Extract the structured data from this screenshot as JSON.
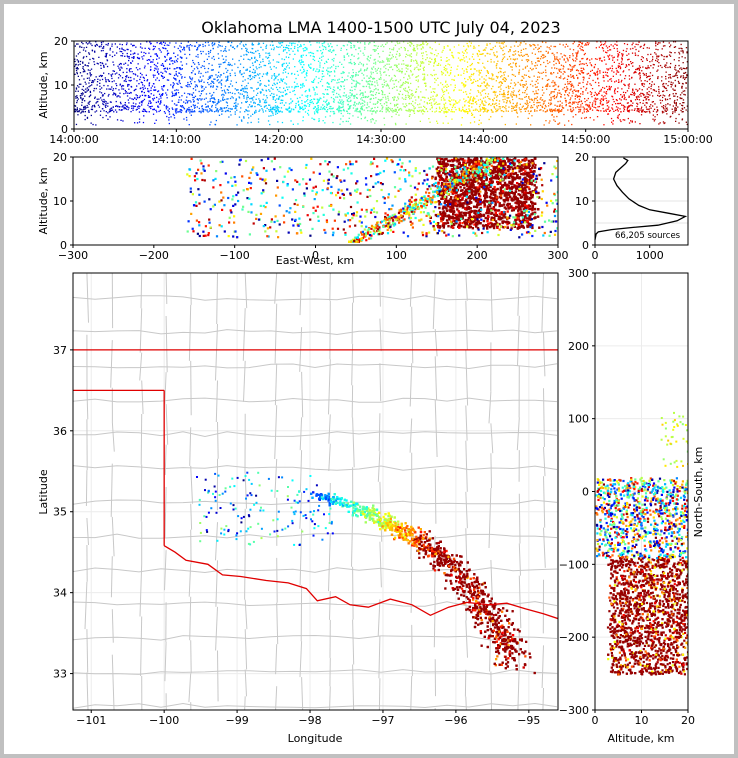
{
  "title": "Oklahoma LMA 1400-1500 UTC July 04, 2023",
  "source_count_label": "66,205 sources",
  "colors": {
    "state_border": "#e00000",
    "county_border": "#c8c8c8",
    "profile_line": "#000000"
  },
  "chart_data": [
    {
      "id": "time-altitude",
      "type": "scatter",
      "ylabel": "Altitude, km",
      "ylim": [
        0,
        20
      ],
      "xlim": [
        "14:00:00",
        "15:00:00"
      ],
      "x_ticks": [
        "14:00:00",
        "14:10:00",
        "14:20:00",
        "14:30:00",
        "14:40:00",
        "14:50:00",
        "15:00:00"
      ],
      "y_ticks": [
        0,
        10,
        20
      ],
      "point_color": "by-time (jet colormap, blue to red)",
      "altitude_band_km": [
        4,
        20
      ]
    },
    {
      "id": "east-west-altitude",
      "type": "scatter",
      "xlabel": "East-West, km",
      "ylabel": "Altitude, km",
      "xlim": [
        -300,
        300
      ],
      "ylim": [
        0,
        20
      ],
      "x_ticks": [
        -300,
        -200,
        -100,
        0,
        100,
        200,
        300
      ],
      "y_ticks": [
        0,
        10,
        20
      ],
      "dense_core_km": [
        150,
        270
      ]
    },
    {
      "id": "altitude-histogram",
      "type": "line",
      "xlim": [
        0,
        1700
      ],
      "ylim": [
        0,
        20
      ],
      "x_ticks": [
        0,
        1000
      ],
      "y_ticks": [
        0,
        10,
        20
      ],
      "profile": [
        {
          "count": 0,
          "alt": 1.2
        },
        {
          "count": 20,
          "alt": 2.5
        },
        {
          "count": 60,
          "alt": 3.0
        },
        {
          "count": 300,
          "alt": 3.5
        },
        {
          "count": 700,
          "alt": 4.0
        },
        {
          "count": 1150,
          "alt": 4.5
        },
        {
          "count": 1500,
          "alt": 5.5
        },
        {
          "count": 1650,
          "alt": 6.5
        },
        {
          "count": 1350,
          "alt": 7.2
        },
        {
          "count": 1000,
          "alt": 8.0
        },
        {
          "count": 800,
          "alt": 9.0
        },
        {
          "count": 620,
          "alt": 10.5
        },
        {
          "count": 500,
          "alt": 12.0
        },
        {
          "count": 400,
          "alt": 13.5
        },
        {
          "count": 340,
          "alt": 15.0
        },
        {
          "count": 380,
          "alt": 16.5
        },
        {
          "count": 470,
          "alt": 17.5
        },
        {
          "count": 560,
          "alt": 18.5
        },
        {
          "count": 600,
          "alt": 19.2
        },
        {
          "count": 520,
          "alt": 19.8
        }
      ]
    },
    {
      "id": "plan-view",
      "type": "scatter",
      "xlabel": "Longitude",
      "ylabel": "Latitude",
      "xlim": [
        -101.25,
        -94.6
      ],
      "ylim": [
        32.55,
        37.95
      ],
      "x_ticks": [
        -101,
        -100,
        -99,
        -98,
        -97,
        -96,
        -95
      ],
      "y_ticks": [
        33,
        34,
        35,
        36,
        37
      ],
      "storm_track": [
        {
          "lon": -98.0,
          "lat": 35.25
        },
        {
          "lon": -97.5,
          "lat": 35.1
        },
        {
          "lon": -97.0,
          "lat": 34.9
        },
        {
          "lon": -96.5,
          "lat": 34.65
        },
        {
          "lon": -96.0,
          "lat": 34.3
        },
        {
          "lon": -95.6,
          "lat": 33.8
        },
        {
          "lon": -95.2,
          "lat": 33.2
        }
      ]
    },
    {
      "id": "north-south-altitude",
      "type": "scatter",
      "xlabel": "Altitude, km",
      "ylabel": "North-South, km",
      "xlim": [
        0,
        20
      ],
      "ylim": [
        -300,
        300
      ],
      "x_ticks": [
        0,
        10,
        20
      ],
      "y_ticks": [
        -300,
        -200,
        -100,
        0,
        100,
        200,
        300
      ]
    }
  ]
}
